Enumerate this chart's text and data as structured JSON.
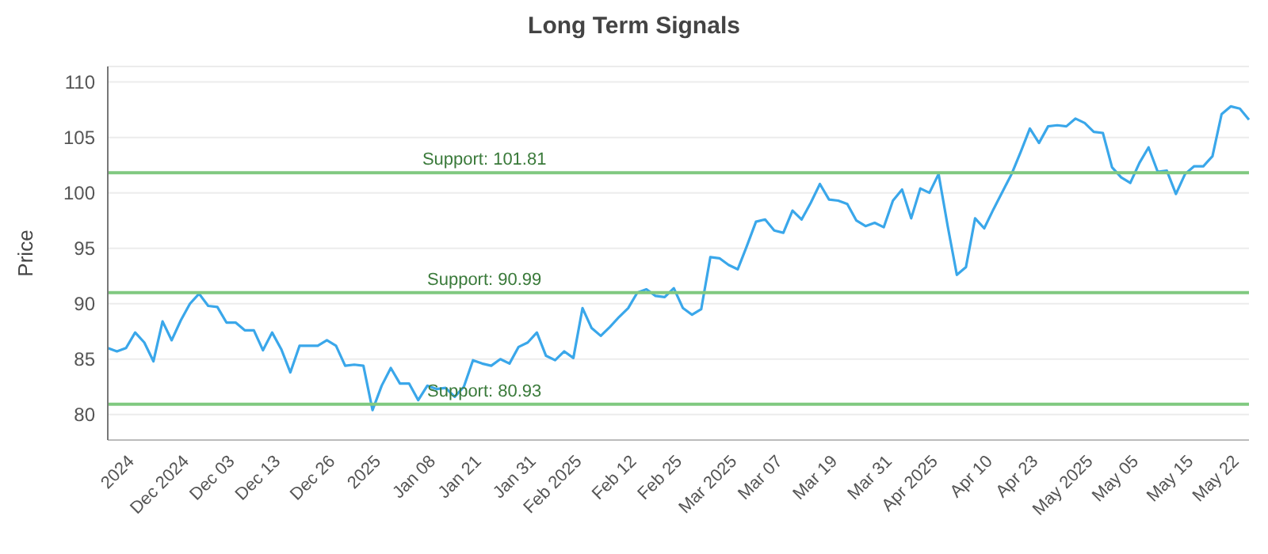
{
  "chart_data": {
    "type": "line",
    "title": "Long Term Signals",
    "ylabel": "Price",
    "categories": [
      null,
      null,
      null,
      "2024",
      null,
      null,
      null,
      null,
      null,
      "Dec 2024",
      null,
      null,
      null,
      null,
      "Dec 03",
      null,
      null,
      null,
      null,
      "Dec 13",
      null,
      null,
      null,
      null,
      null,
      "Dec 26",
      null,
      null,
      null,
      null,
      "2025",
      null,
      null,
      null,
      null,
      null,
      "Jan 08",
      null,
      null,
      null,
      null,
      "Jan 21",
      null,
      null,
      null,
      null,
      null,
      "Jan 31",
      null,
      null,
      null,
      null,
      "Feb 2025",
      null,
      null,
      null,
      null,
      null,
      "Feb 12",
      null,
      null,
      null,
      null,
      "Feb 25",
      null,
      null,
      null,
      null,
      null,
      "Mar 2025",
      null,
      null,
      null,
      null,
      "Mar 07",
      null,
      null,
      null,
      null,
      null,
      "Mar 19",
      null,
      null,
      null,
      null,
      null,
      "Mar 31",
      null,
      null,
      null,
      null,
      "Apr 2025",
      null,
      null,
      null,
      null,
      null,
      "Apr 10",
      null,
      null,
      null,
      null,
      "Apr 23",
      null,
      null,
      null,
      null,
      null,
      "May 2025",
      null,
      null,
      null,
      null,
      "May 05",
      null,
      null,
      null,
      null,
      null,
      "May 15",
      null,
      null,
      null,
      null,
      "May 22",
      null
    ],
    "series": [
      {
        "color": "#3aa7ea",
        "values": [
          86.0,
          85.7,
          86.0,
          87.4,
          86.5,
          84.8,
          88.4,
          86.7,
          88.5,
          90.0,
          90.9,
          89.8,
          89.7,
          88.3,
          88.3,
          87.6,
          87.6,
          85.8,
          87.4,
          85.9,
          83.8,
          86.2,
          86.2,
          86.2,
          86.7,
          86.2,
          84.4,
          84.5,
          84.4,
          80.4,
          82.6,
          84.2,
          82.8,
          82.8,
          81.3,
          82.6,
          82.3,
          82.4,
          81.6,
          82.5,
          84.9,
          84.6,
          84.4,
          85.0,
          84.6,
          86.1,
          86.5,
          87.4,
          85.3,
          84.9,
          85.7,
          85.1,
          89.6,
          87.8,
          87.1,
          87.9,
          88.8,
          89.6,
          91.0,
          91.3,
          90.7,
          90.6,
          91.4,
          89.6,
          89.0,
          89.5,
          94.2,
          94.1,
          93.5,
          93.1,
          95.2,
          97.4,
          97.6,
          96.6,
          96.4,
          98.4,
          97.6,
          99.1,
          100.8,
          99.4,
          99.3,
          99.0,
          97.5,
          97.0,
          97.3,
          96.9,
          99.3,
          100.3,
          97.7,
          100.4,
          100.0,
          101.7,
          97.0,
          92.6,
          93.3,
          97.7,
          96.8,
          98.5,
          100.1,
          101.7,
          103.7,
          105.8,
          104.5,
          106.0,
          106.1,
          106.0,
          106.7,
          106.3,
          105.5,
          105.4,
          102.3,
          101.4,
          100.9,
          102.7,
          104.1,
          101.9,
          102.0,
          99.9,
          101.7,
          102.4,
          102.4,
          103.3,
          107.1,
          107.8,
          107.6,
          106.6
        ]
      }
    ],
    "ylim": [
      77.7,
      111.4
    ],
    "yticks": [
      80,
      85,
      90,
      95,
      100,
      105,
      110
    ],
    "grid": "y",
    "marker": "none",
    "line_style": "solid",
    "ref_lines": [
      {
        "axis": "y",
        "value": 101.81,
        "label": "Support: 101.81",
        "color": "#80c980"
      },
      {
        "axis": "y",
        "value": 90.99,
        "label": "Support: 90.99",
        "color": "#80c980"
      },
      {
        "axis": "y",
        "value": 80.93,
        "label": "Support: 80.93",
        "color": "#80c980"
      }
    ]
  }
}
